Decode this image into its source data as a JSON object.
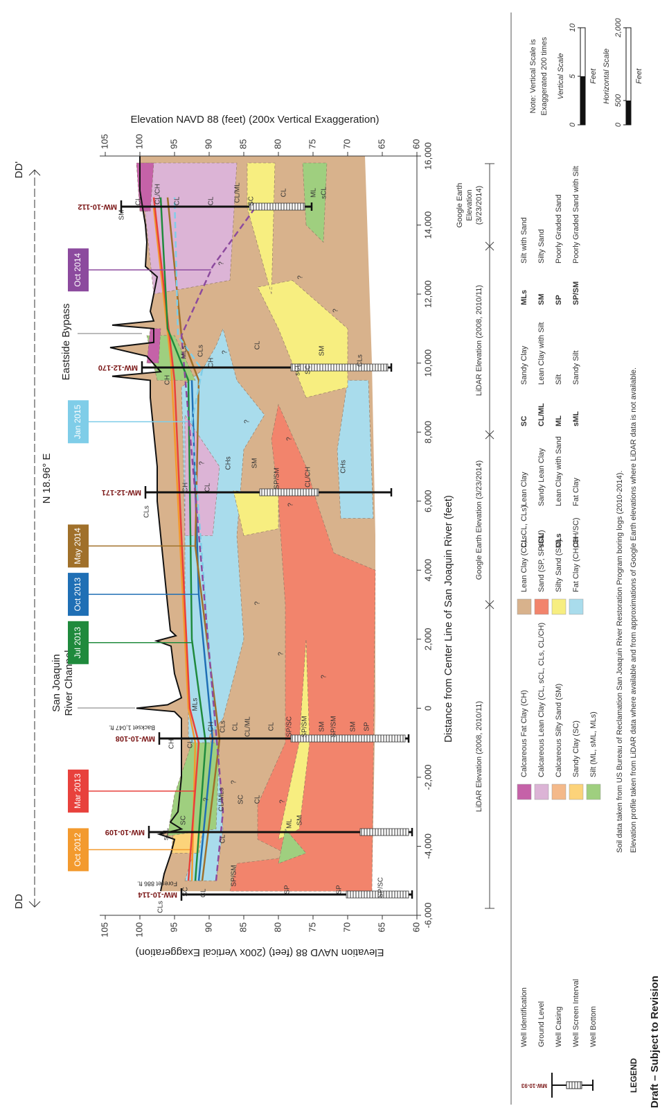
{
  "section": {
    "start": "DD",
    "end": "DD'",
    "bearing": "N 18.96° E"
  },
  "axes": {
    "left_label": "Elevation NAVD 88 (feet) (200x Vertical Exaggeration)",
    "right_label": "Elevation NAVD 88 (feet) (200x Vertical Exaggeration)",
    "x_label": "Distance from Center Line of San Joaquin River (feet)",
    "xticks": [
      {
        "value": -6000,
        "label": "-6,000"
      },
      {
        "value": -4000,
        "label": "-4,000"
      },
      {
        "value": -2000,
        "label": "-2,000"
      },
      0,
      {
        "value": 2000,
        "label": "2,000"
      },
      {
        "value": 4000,
        "label": "4,000"
      },
      {
        "value": 6000,
        "label": "6,000"
      },
      {
        "value": 8000,
        "label": "8,000"
      },
      {
        "value": 10000,
        "label": "10,000"
      },
      {
        "value": 12000,
        "label": "12,000"
      },
      {
        "value": 14000,
        "label": "14,000"
      },
      {
        "value": 16000,
        "label": "16,000"
      }
    ],
    "yticks": [
      105,
      100,
      95,
      90,
      85,
      80,
      75,
      70,
      65,
      60
    ]
  },
  "features": [
    {
      "lines": [
        "San Joaquin",
        "River Channel"
      ]
    },
    {
      "lines": [
        "Eastside Bypass"
      ]
    }
  ],
  "wells": [
    {
      "name": "MW-10-114",
      "note": "Foreset 886 ft."
    },
    {
      "name": "MW-10-109"
    },
    {
      "name": "MW-10-108",
      "note": "Backset 1,047 ft."
    },
    {
      "name": "MW-12-171"
    },
    {
      "name": "MW-12-170"
    },
    {
      "name": "MW-10-112"
    }
  ],
  "water_levels": [
    {
      "name": "Oct 2012",
      "color": "#f39a2e",
      "dashed": false
    },
    {
      "name": "Mar 2013",
      "color": "#e8413c",
      "dashed": false
    },
    {
      "name": "Jul 2013",
      "color": "#1f8a3c",
      "dashed": false
    },
    {
      "name": "Oct 2013",
      "color": "#1f6fb5",
      "dashed": false
    },
    {
      "name": "May 2014",
      "color": "#a0702a",
      "dashed": false
    },
    {
      "name": "Jan 2015",
      "color": "#7fcde8",
      "dashed": true
    },
    {
      "name": "Oct 2014",
      "color": "#8c4a9e",
      "dashed": true
    }
  ],
  "elevation_sources": [
    {
      "lines": [
        "LiDAR Elevation (2008, 2010/11)"
      ]
    },
    {
      "lines": [
        "Google Earth Elevation (3/23/2014)"
      ]
    },
    {
      "lines": [
        "LiDAR Elevation (2008, 2010/11)"
      ]
    },
    {
      "lines": [
        "Google Earth",
        "Elevation",
        "(3/23/2014)"
      ]
    }
  ],
  "layer_labels": [
    "CLs",
    "SC",
    "CL",
    "SP/SM",
    "SP",
    "SP",
    "SP/SC",
    "sCL",
    "SC",
    "CL",
    "CL/MLs",
    "SC",
    "CL",
    "ML",
    "SM",
    "CH",
    "CL",
    "MLs",
    "CH",
    "CLs",
    "CL",
    "CL/ML",
    "CL",
    "SP/SC",
    "SP/SM",
    "SM",
    "SP/SM",
    "SM",
    "SP",
    "CLs",
    "CH",
    "CL",
    "CHs",
    "SM",
    "SP/SM",
    "CL/CH",
    "CHs",
    "CH",
    "MLs",
    "CLs",
    "CH",
    "CL",
    "sCL",
    "SC",
    "SM",
    "CLs",
    "SM",
    "CL",
    "CL/CH",
    "CL",
    "CL",
    "CL/ML",
    "SC",
    "CL",
    "ML",
    "sCL",
    "?",
    "?",
    "?",
    "?",
    "?",
    "?",
    "?",
    "?",
    "?",
    "?",
    "?",
    "?",
    "?",
    "?"
  ],
  "legend": {
    "title": "LEGEND",
    "well_example": "MW-10-93",
    "well_items": [
      "Well Identification",
      "Ground Level",
      "Well Casing",
      "Well Screen Interval",
      "Well Bottom"
    ],
    "soil_groups": [
      {
        "name": "Calcareous Fat Clay (CH)",
        "color": "#c562a8"
      },
      {
        "name": "Calcareous Lean Clay (CL, sCL, CLs, CL/CH)",
        "color": "#dcb4d6"
      },
      {
        "name": "Calcareous Silty Sand (SM)",
        "color": "#f4b98a"
      },
      {
        "name": "Sandy Clay (SC)",
        "color": "#fcd37a"
      },
      {
        "name": "Silt (ML, sML, MLs)",
        "color": "#9fcf7f"
      },
      {
        "name": "Lean Clay (CL, sCL, CLs)",
        "color": "#d8b28c"
      },
      {
        "name": "Sand (SP, SP/SM)",
        "color": "#f2846c"
      },
      {
        "name": "Silty Sand (SM)",
        "color": "#f7ee80"
      },
      {
        "name": "Fat Clay (CH, CH/SC)",
        "color": "#a9dcec"
      }
    ],
    "abbreviations": [
      {
        "code": "CL",
        "name": "Lean Clay"
      },
      {
        "code": "sCL",
        "name": "Sandy Lean Clay"
      },
      {
        "code": "CLs",
        "name": "Lean Clay with Sand"
      },
      {
        "code": "CH",
        "name": "Fat Clay"
      },
      {
        "code": "SC",
        "name": "Sandy Clay"
      },
      {
        "code": "CL/ML",
        "name": "Lean Clay with Silt"
      },
      {
        "code": "ML",
        "name": "Silt"
      },
      {
        "code": "sML",
        "name": "Sandy Silt"
      },
      {
        "code": "MLs",
        "name": "Silt with Sand"
      },
      {
        "code": "SM",
        "name": "Silty Sand"
      },
      {
        "code": "SP",
        "name": "Poorly Graded Sand"
      },
      {
        "code": "SP/SM",
        "name": "Poorly Graded Sand with Silt"
      }
    ]
  },
  "notes": [
    "Soil data taken from US Bureau of Reclamation San Joaquin River Restoration Program boring logs (2010-2014).",
    "Elevation profile taken from LiDAR data where available and from approximations of Google Earth elevations where LiDAR data is not available."
  ],
  "scale": {
    "note": [
      "Note: Vertical Scale is",
      "Exaggerated 200 times"
    ],
    "vertical": {
      "title": "Vertical Scale",
      "ticks": [
        0,
        5,
        10
      ],
      "unit": "Feet"
    },
    "horizontal": {
      "title": "Horizontal Scale",
      "ticks": [
        0,
        500,
        {
          "value": 2000,
          "label": "2,000"
        }
      ],
      "unit": "Feet"
    }
  },
  "draft": "Draft – Subject to Revision"
}
